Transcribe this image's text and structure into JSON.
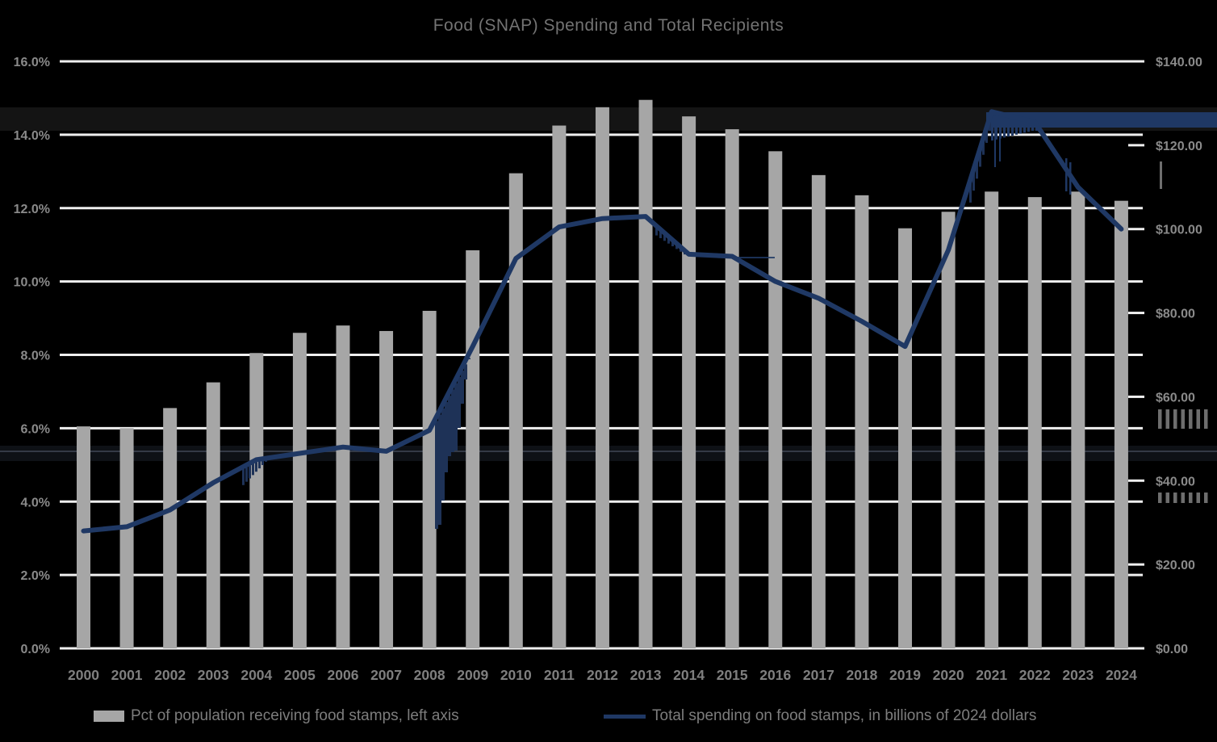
{
  "title": "Food  (SNAP) Spending and Total Recipients",
  "legend": {
    "items": [
      {
        "label": "Pct of population receiving food stamps, left axis",
        "swatch": "bar",
        "color": "#a6a6a6"
      },
      {
        "label": "Total spending on food stamps, in billions of 2024 dollars",
        "swatch": "line",
        "color": "#1f3864"
      }
    ]
  },
  "colors": {
    "background": "#000000",
    "bar": "#a6a6a6",
    "line": "#1f3864",
    "gridline": "#efefef",
    "tick_label": "#8a8a8a",
    "year_label": "#7f7f7f",
    "artifact_gray": "#6e6e6e"
  },
  "chart_data": {
    "type": "bar",
    "subtype": "combo bar+line, dual axis",
    "title": "Food  (SNAP) Spending and Total Recipients",
    "categories": [
      2000,
      2001,
      2002,
      2003,
      2004,
      2005,
      2006,
      2007,
      2008,
      2009,
      2010,
      2011,
      2012,
      2013,
      2014,
      2015,
      2016,
      2017,
      2018,
      2019,
      2020,
      2021,
      2022,
      2023,
      2024
    ],
    "series": [
      {
        "name": "Pct of population receiving food stamps, left axis",
        "type": "bar",
        "axis": "left",
        "unit": "%",
        "values": [
          6.05,
          6.0,
          6.55,
          7.25,
          8.05,
          8.6,
          8.8,
          8.65,
          9.2,
          10.85,
          12.95,
          14.25,
          14.75,
          14.95,
          14.5,
          14.15,
          13.55,
          12.9,
          12.35,
          11.45,
          11.9,
          12.45,
          12.3,
          12.45,
          12.2
        ]
      },
      {
        "name": "Total spending on food stamps, in billions of 2024 dollars",
        "type": "line",
        "axis": "right",
        "unit": "billions of 2024 dollars",
        "values": [
          28,
          29,
          33,
          39.5,
          45,
          46.5,
          48,
          47,
          52,
          72,
          93,
          100.5,
          102.5,
          103,
          94,
          93.5,
          87.5,
          83.5,
          78,
          72,
          95,
          128,
          125.5,
          110,
          100
        ]
      }
    ],
    "left_axis": {
      "range": [
        0,
        16
      ],
      "tick_step": 2,
      "tick_labels": [
        "0.0%",
        "2.0%",
        "4.0%",
        "6.0%",
        "8.0%",
        "10.0%",
        "12.0%",
        "14.0%",
        "16.0%"
      ]
    },
    "right_axis": {
      "range": [
        0,
        140
      ],
      "tick_step": 20,
      "tick_labels": [
        "$0.00",
        "$20.00",
        "$40.00",
        "$60.00",
        "$80.00",
        "$100.00",
        "$120.00",
        "$140.00"
      ]
    },
    "grid": true,
    "legend_position": "bottom"
  }
}
